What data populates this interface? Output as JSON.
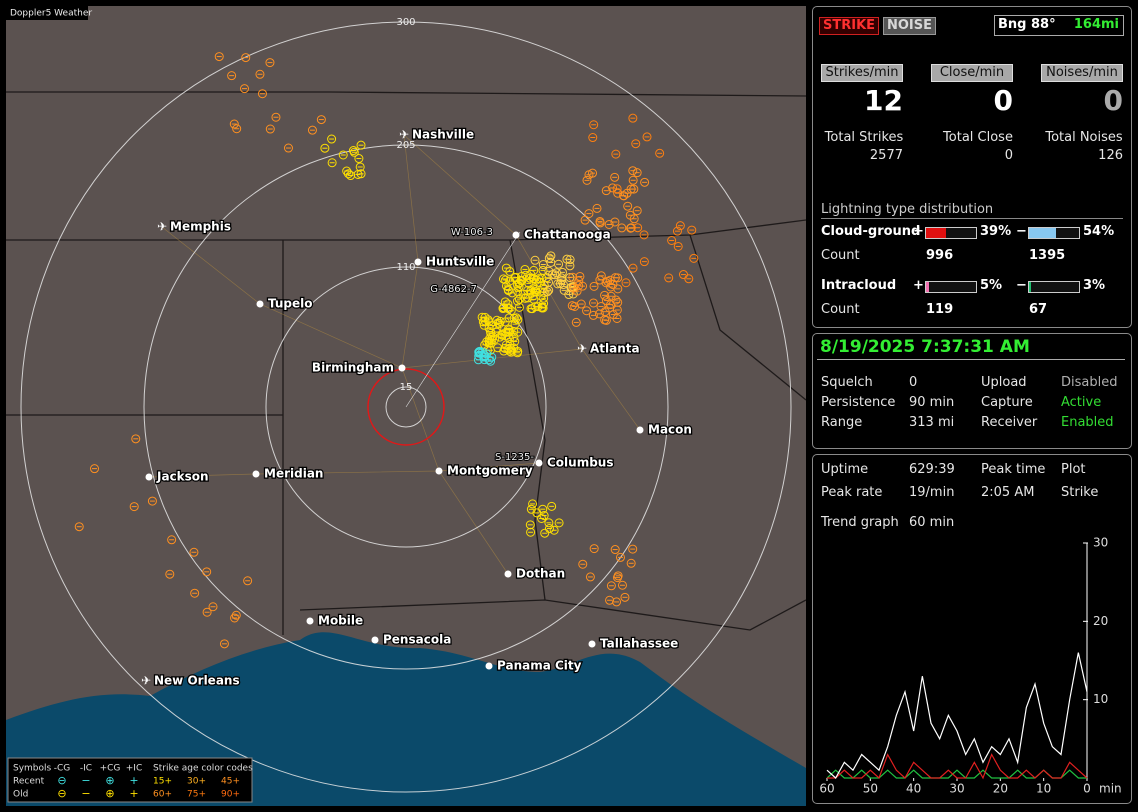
{
  "window_title": "Doppler5 Weather",
  "map": {
    "range_labels": [
      "300",
      "205",
      "110",
      "15"
    ],
    "cities": [
      "Nashville",
      "Memphis",
      "Chattanooga",
      "Huntsville",
      "Tupelo",
      "Birmingham",
      "Atlanta",
      "Macon",
      "Columbus",
      "Montgomery",
      "Meridian",
      "Jackson",
      "Dothan",
      "Mobile",
      "Pensacola",
      "Tallahassee",
      "Panama City",
      "New Orleans"
    ],
    "stations": [
      "W-106-3",
      "G-4862-7",
      "S-1235-"
    ],
    "legend": {
      "symbols_label": "Symbols",
      "symbols": [
        "-CG",
        "-IC",
        "+CG",
        "+IC"
      ],
      "age_label": "Strike age color codes",
      "rows": [
        {
          "label": "Recent",
          "marks": [
            "⊖",
            "−",
            "⊕",
            "+"
          ],
          "ages": [
            "15+",
            "30+",
            "45+"
          ]
        },
        {
          "label": "Old",
          "marks": [
            "⊖",
            "−",
            "⊕",
            "+"
          ],
          "ages": [
            "60+",
            "75+",
            "90+"
          ]
        }
      ]
    }
  },
  "panel": {
    "modes": [
      "STRIKE",
      "NOISE"
    ],
    "bearing": "Bng 88°",
    "distance": "164mi",
    "rates": [
      {
        "label": "Strikes/min",
        "value": 12
      },
      {
        "label": "Close/min",
        "value": 0
      },
      {
        "label": "Noises/min",
        "value": 0
      }
    ],
    "totals": [
      {
        "label": "Total Strikes",
        "value": 2577
      },
      {
        "label": "Total Close",
        "value": 0
      },
      {
        "label": "Total Noises",
        "value": 126
      }
    ],
    "distribution": {
      "title": "Lightning type distribution",
      "count_label": "Count",
      "rows": [
        {
          "label": "Cloud-ground",
          "positive": {
            "sign": "+",
            "percent": {
              "value": 39,
              "label": "39%"
            },
            "count": 996,
            "color": "#e01010"
          },
          "negative": {
            "sign": "−",
            "percent": {
              "value": 54,
              "label": "54%"
            },
            "count": 1395,
            "color": "#88c8f0"
          }
        },
        {
          "label": "Intracloud",
          "positive": {
            "sign": "+",
            "percent": {
              "value": 5,
              "label": "5%"
            },
            "count": 119,
            "color": "#f070b0"
          },
          "negative": {
            "sign": "−",
            "percent": {
              "value": 3,
              "label": "3%"
            },
            "count": 67,
            "color": "#20c070"
          }
        }
      ]
    }
  },
  "status": {
    "datetime": "8/19/2025 7:37:31 AM",
    "settings": [
      [
        "Squelch",
        "0",
        "Upload",
        {
          "text": "Disabled",
          "color": "#b0b0b0"
        }
      ],
      [
        "Persistence",
        "90 min",
        "Capture",
        {
          "text": "Active",
          "color": "#33dd33"
        }
      ],
      [
        "Range",
        "313 mi",
        "Receiver",
        {
          "text": "Enabled",
          "color": "#33dd33"
        }
      ]
    ]
  },
  "stats": {
    "rows": [
      [
        "Uptime",
        "629:39",
        "Peak time",
        "Plot"
      ],
      [
        "Peak rate",
        "19/min",
        "2:05 AM",
        "Strike"
      ]
    ],
    "trend_label": "Trend graph",
    "trend_value": "60 min"
  },
  "trend_chart": {
    "type": "line",
    "x": [
      60,
      58,
      56,
      54,
      52,
      50,
      48,
      46,
      44,
      42,
      40,
      38,
      36,
      34,
      32,
      30,
      28,
      26,
      24,
      22,
      20,
      18,
      16,
      14,
      12,
      10,
      8,
      6,
      4,
      2,
      0
    ],
    "xlim": [
      60,
      0
    ],
    "xticks": [
      60,
      50,
      40,
      30,
      20,
      10,
      0
    ],
    "x_unit": "min",
    "ylim": [
      0,
      30
    ],
    "yticks": [
      10,
      20,
      30
    ],
    "series": [
      {
        "color": "#ffffff",
        "values": [
          1,
          0,
          2,
          1,
          3,
          2,
          1,
          4,
          8,
          11,
          6,
          13,
          7,
          5,
          8,
          6,
          3,
          5,
          2,
          4,
          3,
          5,
          2,
          9,
          12,
          7,
          4,
          3,
          10,
          16,
          11
        ]
      },
      {
        "color": "#e02020",
        "values": [
          0,
          0,
          1,
          0,
          0,
          1,
          0,
          3,
          1,
          0,
          2,
          1,
          0,
          0,
          1,
          0,
          0,
          2,
          0,
          3,
          1,
          0,
          0,
          1,
          0,
          1,
          0,
          0,
          2,
          1,
          0
        ]
      },
      {
        "color": "#20c040",
        "values": [
          0,
          1,
          0,
          0,
          1,
          0,
          0,
          1,
          0,
          0,
          1,
          0,
          0,
          0,
          0,
          1,
          0,
          0,
          1,
          0,
          0,
          0,
          1,
          0,
          0,
          1,
          0,
          0,
          1,
          0,
          0
        ]
      }
    ]
  }
}
